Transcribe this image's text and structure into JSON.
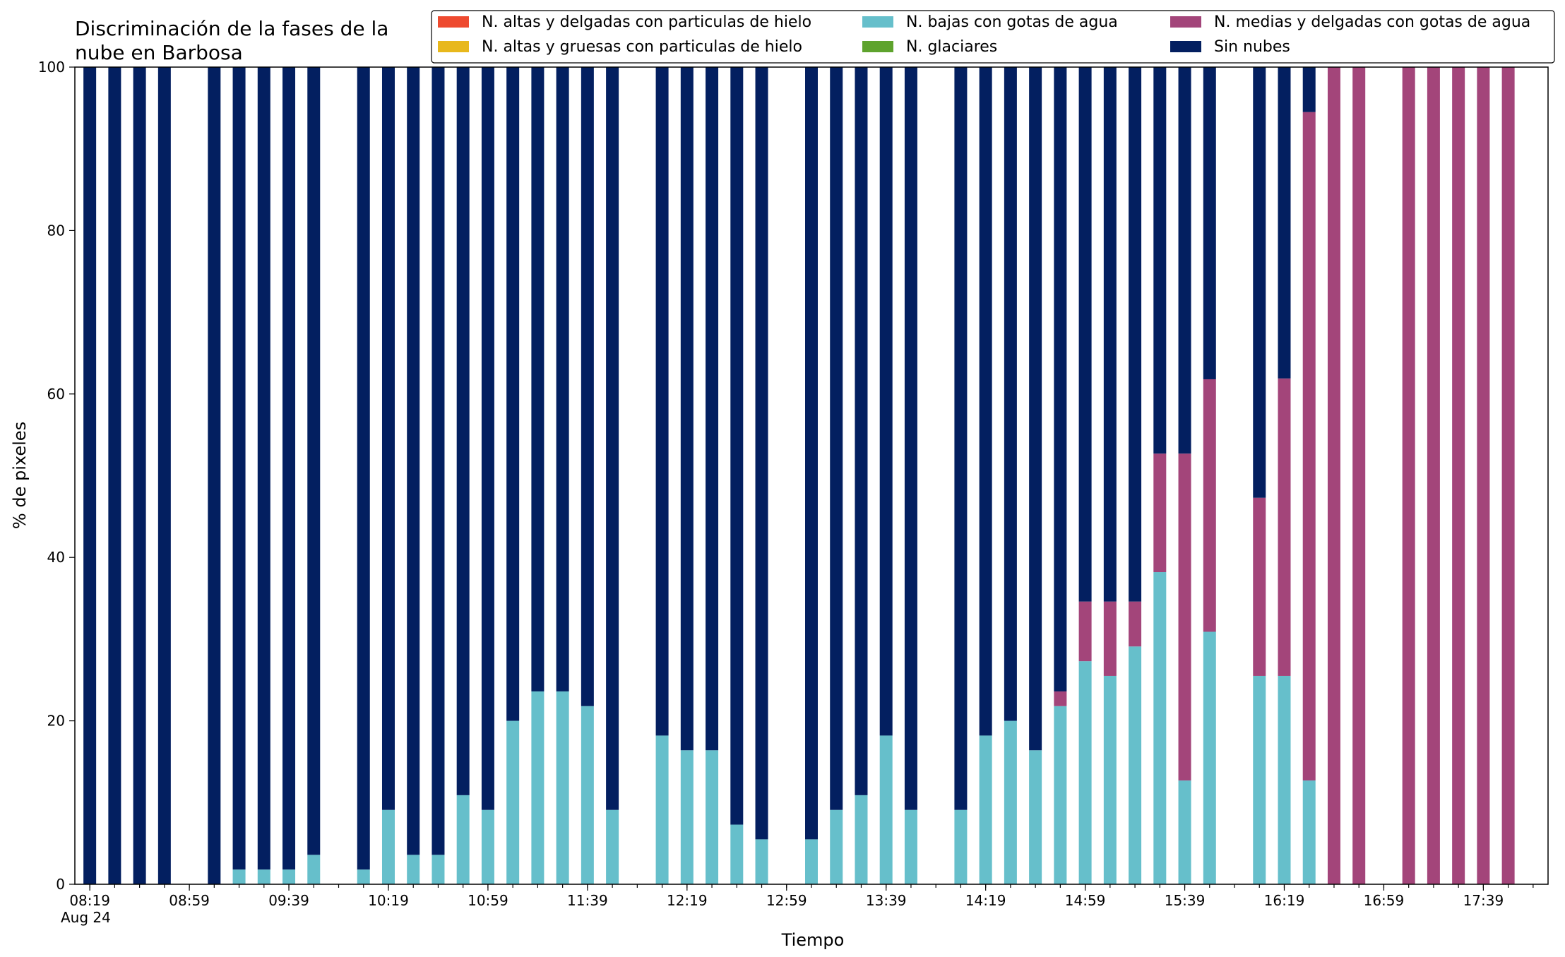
{
  "chart_data": {
    "type": "bar",
    "stacked": true,
    "title_lines": [
      "Discriminación de la fases de la",
      "nube en Barbosa"
    ],
    "xlabel": "Tiempo",
    "ylabel": "% de pixeles",
    "ylim": [
      0,
      100
    ],
    "yticks": [
      "0",
      "20",
      "40",
      "60",
      "80",
      "100"
    ],
    "grid": false,
    "legend_position": "top-right",
    "x_unit_minutes": 10,
    "time_start": "08:19",
    "date_label": "Aug 24",
    "xticks": [
      {
        "label": "08:19",
        "step": 0
      },
      {
        "label": "08:59",
        "step": 4
      },
      {
        "label": "09:39",
        "step": 8
      },
      {
        "label": "10:19",
        "step": 12
      },
      {
        "label": "10:59",
        "step": 16
      },
      {
        "label": "11:39",
        "step": 20
      },
      {
        "label": "12:19",
        "step": 24
      },
      {
        "label": "12:59",
        "step": 28
      },
      {
        "label": "13:39",
        "step": 32
      },
      {
        "label": "14:19",
        "step": 36
      },
      {
        "label": "14:59",
        "step": 40
      },
      {
        "label": "15:39",
        "step": 44
      },
      {
        "label": "16:19",
        "step": 48
      },
      {
        "label": "16:59",
        "step": 52
      },
      {
        "label": "17:39",
        "step": 56
      }
    ],
    "times": [
      "08:19",
      "08:29",
      "08:39",
      "08:49",
      "09:09",
      "09:19",
      "09:29",
      "09:39",
      "09:49",
      "10:09",
      "10:19",
      "10:29",
      "10:39",
      "10:49",
      "10:59",
      "11:09",
      "11:19",
      "11:29",
      "11:39",
      "11:49",
      "12:09",
      "12:19",
      "12:29",
      "12:39",
      "12:49",
      "13:09",
      "13:19",
      "13:29",
      "13:39",
      "13:49",
      "14:09",
      "14:19",
      "14:29",
      "14:39",
      "14:49",
      "14:59",
      "15:09",
      "15:19",
      "15:29",
      "15:39",
      "15:49",
      "16:09",
      "16:19",
      "16:29",
      "16:39",
      "16:49",
      "17:09",
      "17:19",
      "17:29",
      "17:39",
      "17:49"
    ],
    "series": [
      {
        "name": "N. altas y delgadas con particulas de hielo",
        "color": "#ee4a2f",
        "values": [
          0,
          0,
          0,
          0,
          0,
          0,
          0,
          0,
          0,
          0,
          0,
          0,
          0,
          0,
          0,
          0,
          0,
          0,
          0,
          0,
          0,
          0,
          0,
          0,
          0,
          0,
          0,
          0,
          0,
          0,
          0,
          0,
          0,
          0,
          0,
          0,
          0,
          0,
          0,
          0,
          0,
          0,
          0,
          0,
          0,
          0,
          0,
          0,
          0,
          0,
          0
        ]
      },
      {
        "name": "N. altas y gruesas con particulas de hielo",
        "color": "#e8b81c",
        "values": [
          0,
          0,
          0,
          0,
          0,
          0,
          0,
          0,
          0,
          0,
          0,
          0,
          0,
          0,
          0,
          0,
          0,
          0,
          0,
          0,
          0,
          0,
          0,
          0,
          0,
          0,
          0,
          0,
          0,
          0,
          0,
          0,
          0,
          0,
          0,
          0,
          0,
          0,
          0,
          0,
          0,
          0,
          0,
          0,
          0,
          0,
          0,
          0,
          0,
          0,
          0
        ]
      },
      {
        "name": "N. bajas con gotas de agua",
        "color": "#66bfcb",
        "values": [
          0,
          0,
          0,
          0,
          0,
          1.8,
          1.8,
          1.8,
          3.6,
          1.8,
          9.1,
          3.6,
          3.6,
          10.9,
          9.1,
          20,
          23.6,
          23.6,
          21.8,
          9.1,
          18.2,
          16.4,
          16.4,
          7.3,
          5.5,
          5.5,
          9.1,
          10.9,
          18.2,
          9.1,
          9.1,
          18.2,
          20,
          16.4,
          21.8,
          27.3,
          25.5,
          29.1,
          38.2,
          12.7,
          30.9,
          25.5,
          25.5,
          12.7,
          0,
          0,
          0,
          0,
          0,
          0,
          0
        ]
      },
      {
        "name": "N. glaciares",
        "color": "#5ea32d",
        "values": [
          0,
          0,
          0,
          0,
          0,
          0,
          0,
          0,
          0,
          0,
          0,
          0,
          0,
          0,
          0,
          0,
          0,
          0,
          0,
          0,
          0,
          0,
          0,
          0,
          0,
          0,
          0,
          0,
          0,
          0,
          0,
          0,
          0,
          0,
          0,
          0,
          0,
          0,
          0,
          0,
          0,
          0,
          0,
          0,
          0,
          0,
          0,
          0,
          0,
          0,
          0
        ]
      },
      {
        "name": "N. medias y delgadas con gotas de agua",
        "color": "#a3457a",
        "values": [
          0,
          0,
          0,
          0,
          0,
          0,
          0,
          0,
          0,
          0,
          0,
          0,
          0,
          0,
          0,
          0,
          0,
          0,
          0,
          0,
          0,
          0,
          0,
          0,
          0,
          0,
          0,
          0,
          0,
          0,
          0,
          0,
          0,
          0,
          1.8,
          7.3,
          9.1,
          5.5,
          14.5,
          40,
          30.9,
          21.8,
          36.4,
          81.8,
          100,
          100,
          100,
          100,
          100,
          100,
          100
        ]
      },
      {
        "name": "Sin nubes",
        "color": "#031f60",
        "values": [
          100,
          100,
          100,
          100,
          100,
          98.2,
          98.2,
          98.2,
          96.4,
          98.2,
          90.9,
          96.4,
          96.4,
          89.1,
          90.9,
          80,
          76.4,
          76.4,
          78.2,
          90.9,
          81.8,
          83.6,
          83.6,
          92.7,
          94.5,
          94.5,
          90.9,
          89.1,
          81.8,
          90.9,
          90.9,
          81.8,
          80,
          83.6,
          76.4,
          65.4,
          65.4,
          65.4,
          47.3,
          47.3,
          38.2,
          52.7,
          38.1,
          5.5,
          0,
          0,
          0,
          0,
          0,
          0,
          0
        ]
      }
    ]
  }
}
